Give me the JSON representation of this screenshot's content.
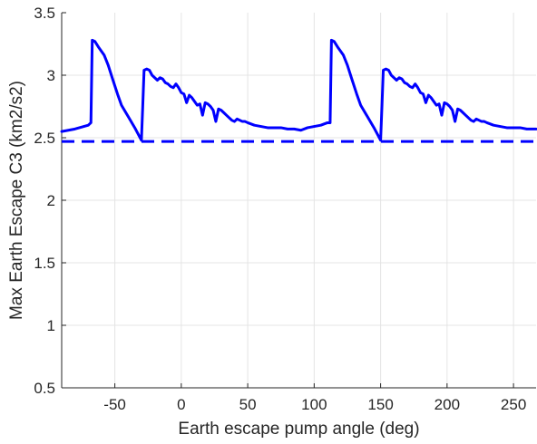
{
  "chart_data": {
    "type": "line",
    "title": "",
    "xlabel": "Earth escape pump angle (deg)",
    "ylabel": "Max Earth Escape C3 (km2/s2)",
    "xlim": [
      -90,
      267
    ],
    "ylim": [
      0.5,
      3.5
    ],
    "xticks": [
      -50,
      0,
      50,
      100,
      150,
      200,
      250
    ],
    "yticks": [
      0.5,
      1,
      1.5,
      2,
      2.5,
      3,
      3.5
    ],
    "grid": true,
    "legend": "none",
    "series": [
      {
        "style": "solid",
        "color": "#0000ff",
        "x": [
          -90,
          -80,
          -70,
          -68,
          -67,
          -65,
          -62,
          -58,
          -55,
          -52,
          -48,
          -45,
          -40,
          -35,
          -30,
          -29,
          -28,
          -26,
          -24,
          -22,
          -20,
          -18,
          -16,
          -14,
          -12,
          -10,
          -8,
          -6,
          -4,
          -2,
          0,
          2,
          4,
          6,
          8,
          10,
          12,
          14,
          16,
          18,
          20,
          22,
          24,
          26,
          28,
          30,
          32,
          34,
          36,
          38,
          40,
          42,
          44,
          46,
          48,
          50,
          55,
          60,
          65,
          70,
          75,
          80,
          85,
          90,
          95,
          100,
          105,
          110,
          112,
          113,
          115,
          118,
          122,
          125,
          128,
          132,
          135,
          140,
          145,
          150,
          151,
          152,
          154,
          156,
          158,
          160,
          162,
          164,
          166,
          168,
          170,
          172,
          174,
          176,
          178,
          180,
          182,
          184,
          186,
          188,
          190,
          192,
          194,
          196,
          198,
          200,
          202,
          204,
          206,
          208,
          210,
          212,
          214,
          216,
          218,
          220,
          222,
          224,
          226,
          228,
          230,
          235,
          240,
          245,
          250,
          255,
          260,
          267
        ],
        "y": [
          2.55,
          2.57,
          2.6,
          2.62,
          3.28,
          3.27,
          3.22,
          3.16,
          3.08,
          2.98,
          2.85,
          2.76,
          2.67,
          2.58,
          2.48,
          2.75,
          3.04,
          3.05,
          3.04,
          3.0,
          2.98,
          2.96,
          2.98,
          2.97,
          2.94,
          2.93,
          2.91,
          2.9,
          2.93,
          2.9,
          2.86,
          2.85,
          2.78,
          2.84,
          2.82,
          2.79,
          2.76,
          2.77,
          2.68,
          2.78,
          2.77,
          2.75,
          2.72,
          2.63,
          2.73,
          2.72,
          2.7,
          2.68,
          2.66,
          2.64,
          2.63,
          2.65,
          2.64,
          2.63,
          2.63,
          2.62,
          2.6,
          2.59,
          2.58,
          2.58,
          2.58,
          2.57,
          2.57,
          2.56,
          2.58,
          2.59,
          2.6,
          2.62,
          2.62,
          3.28,
          3.27,
          3.22,
          3.16,
          3.08,
          2.98,
          2.85,
          2.76,
          2.67,
          2.58,
          2.48,
          2.75,
          3.04,
          3.05,
          3.04,
          3.0,
          2.98,
          2.96,
          2.98,
          2.97,
          2.94,
          2.93,
          2.91,
          2.9,
          2.93,
          2.9,
          2.86,
          2.85,
          2.78,
          2.84,
          2.82,
          2.79,
          2.76,
          2.77,
          2.68,
          2.78,
          2.77,
          2.75,
          2.72,
          2.63,
          2.73,
          2.72,
          2.7,
          2.68,
          2.66,
          2.64,
          2.63,
          2.65,
          2.64,
          2.63,
          2.63,
          2.62,
          2.6,
          2.59,
          2.58,
          2.58,
          2.58,
          2.57,
          2.57
        ]
      },
      {
        "style": "dashed",
        "color": "#0000ff",
        "x": [
          -90,
          267
        ],
        "y": [
          2.47,
          2.47
        ]
      }
    ]
  }
}
